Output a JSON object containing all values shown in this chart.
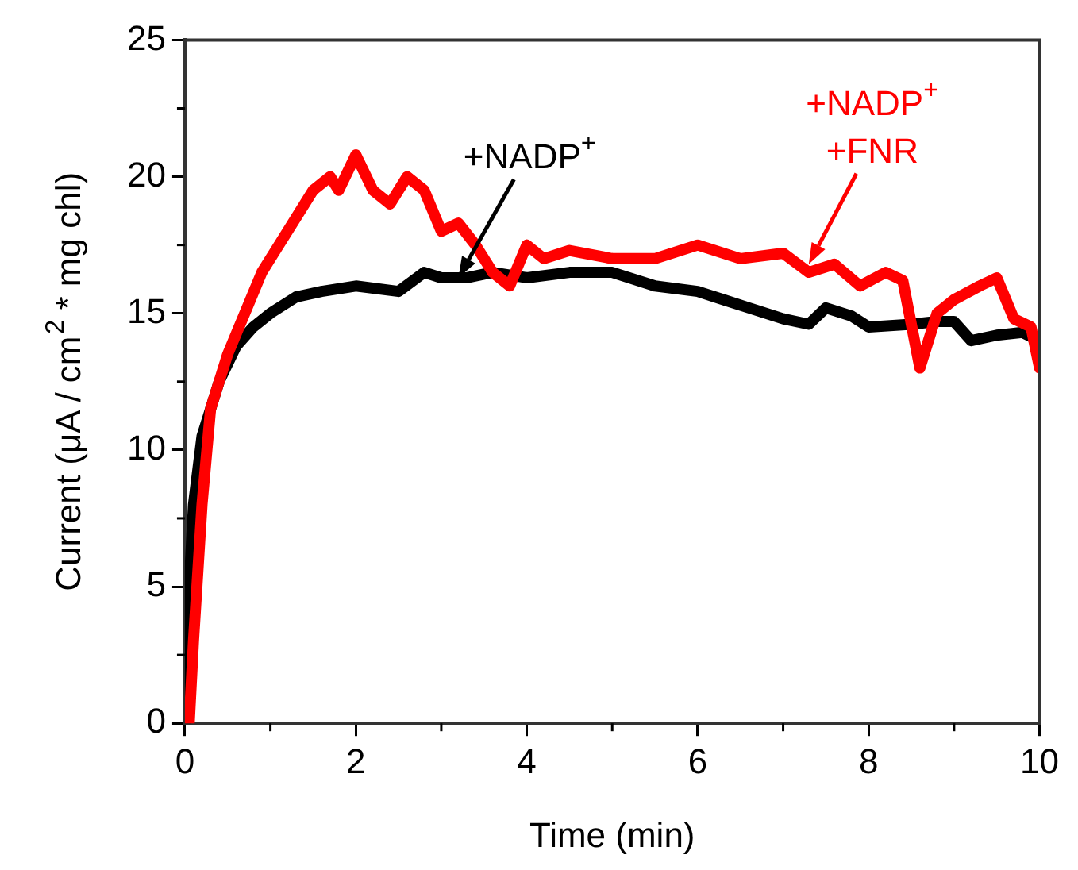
{
  "chart_data": {
    "type": "line",
    "xlabel": "Time (min)",
    "ylabel": "Current (μA / cm$^{2}$ * mg chl)",
    "xlim": [
      0,
      10
    ],
    "xticks": [
      0,
      2,
      4,
      6,
      8,
      10
    ],
    "ylim": [
      0,
      25
    ],
    "yticks": [
      0,
      5,
      10,
      15,
      20,
      25
    ],
    "grid": false,
    "legend": false,
    "marker": "none",
    "line_style": "solid",
    "series": [
      {
        "color": "#ff0000",
        "x": [
          0.05,
          0.1,
          0.2,
          0.3,
          0.5,
          0.7,
          0.9,
          1.1,
          1.3,
          1.5,
          1.7,
          1.8,
          2.0,
          2.2,
          2.4,
          2.6,
          2.8,
          3.0,
          3.2,
          3.4,
          3.6,
          3.8,
          4.0,
          4.2,
          4.5,
          5.0,
          5.5,
          6.0,
          6.5,
          7.0,
          7.3,
          7.6,
          7.9,
          8.2,
          8.4,
          8.6,
          8.8,
          9.0,
          9.3,
          9.5,
          9.7,
          9.9,
          10.0
        ],
        "values": [
          0,
          3,
          8,
          11.5,
          13.5,
          15,
          16.5,
          17.5,
          18.5,
          19.5,
          20,
          19.5,
          20.8,
          19.5,
          19,
          20,
          19.5,
          18,
          18.3,
          17.5,
          16.5,
          16,
          17.5,
          17,
          17.3,
          17,
          17,
          17.5,
          17,
          17.2,
          16.5,
          16.8,
          16,
          16.5,
          16.2,
          13,
          15,
          15.5,
          16,
          16.3,
          14.8,
          14.5,
          13
        ]
      },
      {
        "color": "#000000",
        "x": [
          0,
          0.05,
          0.1,
          0.2,
          0.4,
          0.6,
          0.8,
          1.0,
          1.3,
          1.6,
          2.0,
          2.5,
          2.8,
          3.0,
          3.3,
          3.6,
          4.0,
          4.5,
          5.0,
          5.5,
          6.0,
          6.3,
          6.6,
          7.0,
          7.3,
          7.5,
          7.8,
          8.0,
          8.5,
          8.8,
          9.0,
          9.2,
          9.5,
          9.8,
          10.0
        ],
        "values": [
          0,
          5,
          8,
          10.5,
          12.5,
          13.8,
          14.5,
          15,
          15.6,
          15.8,
          16,
          15.8,
          16.5,
          16.3,
          16.3,
          16.5,
          16.3,
          16.5,
          16.5,
          16,
          15.8,
          15.5,
          15.2,
          14.8,
          14.6,
          15.2,
          14.9,
          14.5,
          14.6,
          14.7,
          14.7,
          14,
          14.2,
          14.3,
          14
        ]
      }
    ],
    "annotations": [
      {
        "text": "+NADP$^{+}$\n+FNR",
        "x": 7.3,
        "y": 16.8
      },
      {
        "text": "+NADP$^{+}$",
        "x": 3.2,
        "y": 16.3
      }
    ]
  }
}
